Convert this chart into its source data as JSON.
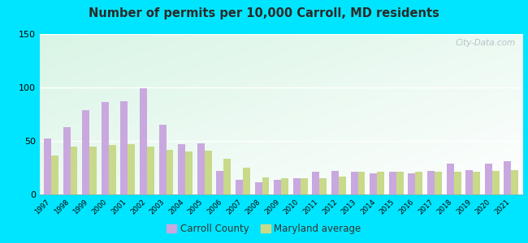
{
  "title": "Number of permits per 10,000 Carroll, MD residents",
  "years": [
    1997,
    1998,
    1999,
    2000,
    2001,
    2002,
    2003,
    2004,
    2005,
    2006,
    2007,
    2008,
    2009,
    2010,
    2011,
    2012,
    2013,
    2014,
    2015,
    2016,
    2017,
    2018,
    2019,
    2020,
    2021
  ],
  "carroll": [
    52,
    63,
    79,
    86,
    87,
    99,
    65,
    47,
    48,
    22,
    14,
    11,
    14,
    15,
    21,
    22,
    21,
    20,
    21,
    20,
    22,
    29,
    23,
    29,
    31
  ],
  "maryland": [
    36,
    45,
    45,
    46,
    47,
    45,
    42,
    40,
    41,
    33,
    25,
    16,
    15,
    15,
    15,
    17,
    21,
    21,
    21,
    21,
    21,
    21,
    21,
    22,
    23
  ],
  "carroll_color": "#c9a8e0",
  "maryland_color": "#c8d98a",
  "outer_bg": "#00e5ff",
  "plot_bg": "#e8f5ee",
  "ylim": [
    0,
    150
  ],
  "yticks": [
    0,
    50,
    100,
    150
  ],
  "bar_width": 0.38,
  "legend_carroll": "Carroll County",
  "legend_maryland": "Maryland average",
  "watermark": "City-Data.com"
}
